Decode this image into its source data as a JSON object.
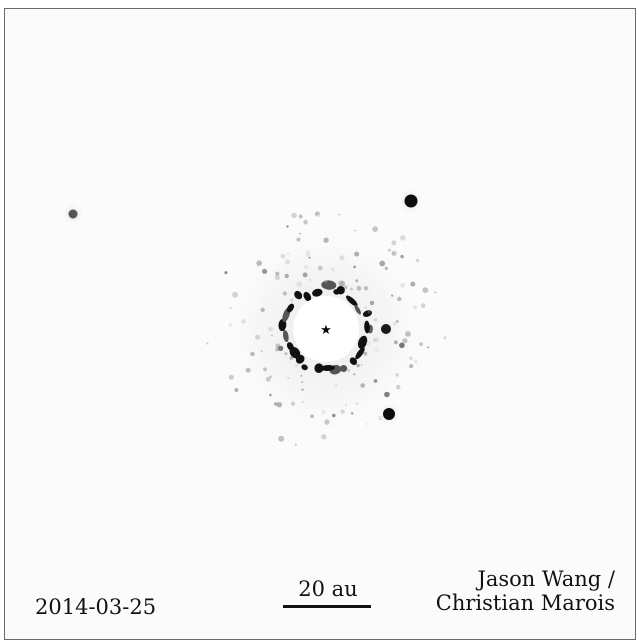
{
  "image": {
    "description_free": true,
    "date": "2014-03-25",
    "scale_bar_label": "20 au",
    "credit": [
      "Jason Wang /",
      "Christian Marois"
    ],
    "colors": {
      "background": "#fbfbfb",
      "speckle": "#1a1a1a",
      "frame": "#6a6a6a"
    },
    "icons": [
      "star-icon"
    ]
  }
}
